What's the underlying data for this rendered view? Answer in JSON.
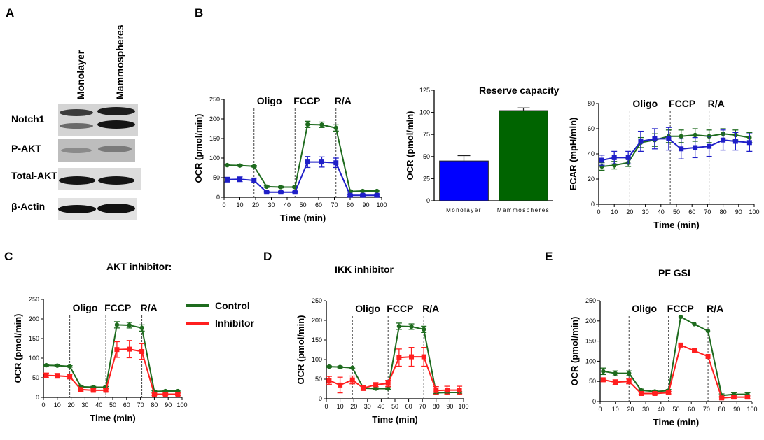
{
  "panel_labels": {
    "a": "A",
    "b": "B",
    "c": "C",
    "d": "D",
    "e": "E"
  },
  "blot": {
    "columns": [
      "Monolayer",
      "Mammospheres"
    ],
    "rows": [
      "Notch1",
      "P-AKT",
      "Total-AKT",
      "β-Actin"
    ]
  },
  "legend": {
    "control": "Control",
    "inhibitor": "Inhibitor"
  },
  "colors": {
    "green": "#1e6b1e",
    "blue": "#1f1fc8",
    "red": "#ff1f1f",
    "bar_blue": "#0000ff",
    "bar_green": "#006400"
  },
  "markers": {
    "oligo": "Oligo",
    "fccp": "FCCP",
    "ra": "R/A"
  },
  "chart_data": [
    {
      "id": "b1",
      "type": "line",
      "title": "",
      "xlabel": "Time (min)",
      "ylabel": "OCR (pmol/min)",
      "xlim": [
        0,
        100
      ],
      "ylim": [
        0,
        250
      ],
      "xticks": [
        0,
        10,
        20,
        30,
        40,
        50,
        60,
        70,
        80,
        90,
        100
      ],
      "yticks": [
        0,
        50,
        100,
        150,
        200,
        250
      ],
      "vlines": [
        19,
        45,
        71
      ],
      "x": [
        2,
        10,
        19,
        27,
        36,
        45,
        53,
        62,
        71,
        80,
        88,
        97
      ],
      "series": [
        {
          "name": "Mammospheres",
          "color": "green",
          "marker": "circle",
          "values": [
            82,
            81,
            79,
            27,
            26,
            26,
            186,
            185,
            177,
            15,
            16,
            16
          ],
          "errors": [
            2,
            2,
            2,
            2,
            2,
            2,
            8,
            7,
            8,
            2,
            2,
            2
          ]
        },
        {
          "name": "Monolayer",
          "color": "blue",
          "marker": "square",
          "values": [
            45,
            46,
            43,
            13,
            13,
            13,
            90,
            90,
            88,
            5,
            5,
            5
          ],
          "errors": [
            6,
            6,
            6,
            2,
            2,
            2,
            14,
            13,
            12,
            2,
            2,
            2
          ]
        }
      ]
    },
    {
      "id": "b2",
      "type": "bar",
      "title": "Reserve capacity",
      "xlabel": "",
      "ylabel": "OCR (pmol/min)",
      "ylim": [
        0,
        125
      ],
      "yticks": [
        0,
        25,
        50,
        75,
        100,
        125
      ],
      "categories": [
        "Monolayer",
        "Mammospheres"
      ],
      "values": [
        45,
        102
      ],
      "errors": [
        6,
        3
      ],
      "bar_colors": [
        "bar_blue",
        "bar_green"
      ]
    },
    {
      "id": "b3",
      "type": "line",
      "title": "",
      "xlabel": "Time (min)",
      "ylabel": "ECAR (mpH/min)",
      "xlim": [
        0,
        100
      ],
      "ylim": [
        0,
        80
      ],
      "xticks": [
        0,
        10,
        20,
        30,
        40,
        50,
        60,
        70,
        80,
        90,
        100
      ],
      "yticks": [
        0,
        20,
        40,
        60,
        80
      ],
      "vlines": [
        20,
        46,
        71
      ],
      "x": [
        2,
        10,
        19,
        27,
        36,
        45,
        53,
        62,
        71,
        80,
        88,
        97
      ],
      "series": [
        {
          "name": "Mammospheres",
          "color": "green",
          "marker": "circle",
          "values": [
            30,
            31,
            33,
            49,
            51,
            54,
            54,
            55,
            54,
            56,
            55,
            53
          ],
          "errors": [
            3,
            3,
            3,
            4,
            5,
            5,
            5,
            5,
            5,
            4,
            4,
            4
          ]
        },
        {
          "name": "Monolayer",
          "color": "blue",
          "marker": "square",
          "values": [
            35,
            37,
            37,
            50,
            52,
            52,
            44,
            45,
            46,
            51,
            50,
            49
          ],
          "errors": [
            4,
            5,
            5,
            8,
            8,
            9,
            8,
            8,
            8,
            8,
            7,
            7
          ]
        }
      ]
    },
    {
      "id": "c",
      "type": "line",
      "title": "AKT inhibitor:",
      "xlabel": "Time (min)",
      "ylabel": "OCR (pmol/min)",
      "xlim": [
        0,
        100
      ],
      "ylim": [
        0,
        250
      ],
      "xticks": [
        0,
        10,
        20,
        30,
        40,
        50,
        60,
        70,
        80,
        90,
        100
      ],
      "yticks": [
        0,
        50,
        100,
        150,
        200,
        250
      ],
      "vlines": [
        19,
        45,
        71
      ],
      "x": [
        2,
        10,
        19,
        27,
        36,
        45,
        53,
        62,
        71,
        80,
        88,
        97
      ],
      "series": [
        {
          "name": "Control",
          "color": "green",
          "marker": "circle",
          "values": [
            82,
            81,
            79,
            27,
            26,
            26,
            185,
            184,
            177,
            15,
            16,
            16
          ],
          "errors": [
            2,
            2,
            2,
            2,
            2,
            2,
            8,
            7,
            8,
            2,
            2,
            2
          ]
        },
        {
          "name": "Inhibitor",
          "color": "red",
          "marker": "square",
          "values": [
            56,
            55,
            53,
            20,
            18,
            18,
            122,
            123,
            117,
            8,
            8,
            8
          ],
          "errors": [
            6,
            6,
            6,
            4,
            4,
            4,
            20,
            22,
            20,
            3,
            3,
            3
          ]
        }
      ]
    },
    {
      "id": "d",
      "type": "line",
      "title": "IKK inhibitor",
      "xlabel": "Time (min)",
      "ylabel": "OCR (pmol/min)",
      "xlim": [
        0,
        100
      ],
      "ylim": [
        0,
        250
      ],
      "xticks": [
        0,
        10,
        20,
        30,
        40,
        50,
        60,
        70,
        80,
        90,
        100
      ],
      "yticks": [
        0,
        50,
        100,
        150,
        200,
        250
      ],
      "vlines": [
        19,
        45,
        71
      ],
      "x": [
        2,
        10,
        19,
        27,
        36,
        45,
        53,
        62,
        71,
        80,
        88,
        97
      ],
      "series": [
        {
          "name": "Control",
          "color": "green",
          "marker": "circle",
          "values": [
            82,
            81,
            79,
            27,
            26,
            26,
            185,
            184,
            177,
            15,
            16,
            16
          ],
          "errors": [
            2,
            2,
            2,
            2,
            2,
            2,
            8,
            7,
            8,
            2,
            2,
            2
          ]
        },
        {
          "name": "Inhibitor",
          "color": "red",
          "marker": "square",
          "values": [
            47,
            35,
            48,
            27,
            36,
            39,
            105,
            107,
            107,
            21,
            22,
            22
          ],
          "errors": [
            10,
            20,
            10,
            6,
            5,
            8,
            22,
            24,
            24,
            10,
            10,
            10
          ]
        }
      ]
    },
    {
      "id": "e",
      "type": "line",
      "title": "PF GSI",
      "xlabel": "Time (min)",
      "ylabel": "OCR (pmol/min)",
      "xlim": [
        0,
        100
      ],
      "ylim": [
        0,
        250
      ],
      "xticks": [
        0,
        10,
        20,
        30,
        40,
        50,
        60,
        70,
        80,
        90,
        100
      ],
      "yticks": [
        0,
        50,
        100,
        150,
        200,
        250
      ],
      "vlines": [
        19,
        45,
        71
      ],
      "x": [
        2,
        10,
        19,
        27,
        36,
        45,
        53,
        62,
        71,
        80,
        88,
        97
      ],
      "series": [
        {
          "name": "Control",
          "color": "green",
          "marker": "circle",
          "values": [
            75,
            70,
            70,
            28,
            25,
            27,
            210,
            192,
            175,
            15,
            18,
            18
          ],
          "errors": [
            8,
            6,
            6,
            3,
            3,
            3,
            0,
            0,
            0,
            4,
            4,
            4
          ]
        },
        {
          "name": "Inhibitor",
          "color": "red",
          "marker": "square",
          "values": [
            54,
            48,
            50,
            20,
            20,
            22,
            140,
            126,
            112,
            9,
            11,
            11
          ],
          "errors": [
            4,
            6,
            6,
            3,
            3,
            3,
            0,
            0,
            0,
            3,
            3,
            3
          ]
        }
      ]
    }
  ]
}
